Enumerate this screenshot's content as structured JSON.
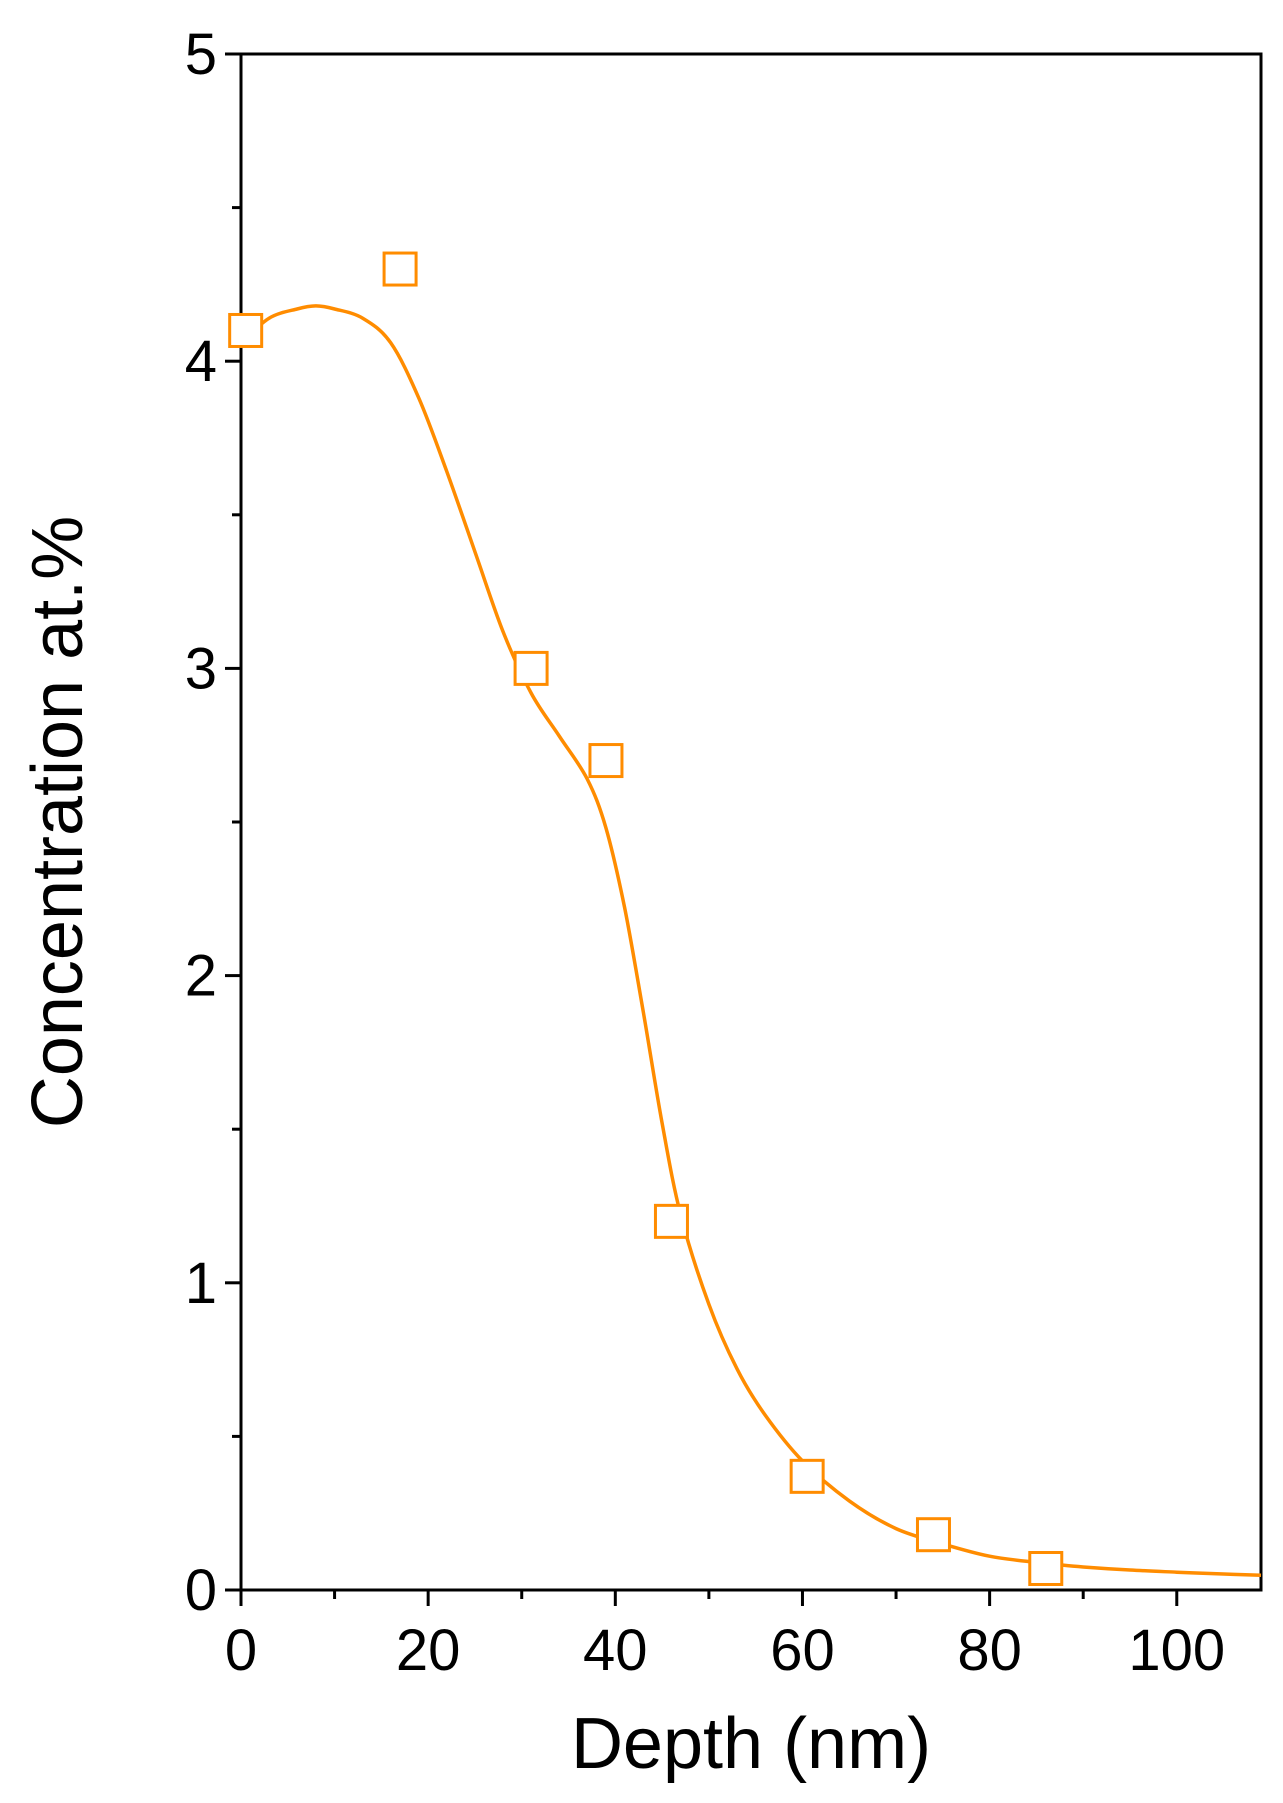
{
  "chart_data": {
    "type": "scatter",
    "xlabel": "Depth (nm)",
    "ylabel": "Concentration at.%",
    "xlim": [
      0,
      109
    ],
    "ylim": [
      0,
      5
    ],
    "x_ticks": [
      0,
      20,
      40,
      60,
      80,
      100
    ],
    "x_tick_labels": [
      "0",
      "20",
      "40",
      "60",
      "80",
      "100"
    ],
    "y_ticks": [
      0,
      1,
      2,
      3,
      4,
      5
    ],
    "y_tick_labels": [
      "0",
      "1",
      "2",
      "3",
      "4",
      "5"
    ],
    "grid": false,
    "colors": {
      "series": "#ff8c00",
      "axis": "#000000"
    },
    "series": [
      {
        "kind": "markers",
        "marker": "open-square",
        "x": [
          0.5,
          17,
          31,
          39,
          46,
          60.5,
          74,
          86
        ],
        "y": [
          4.1,
          4.3,
          3.0,
          2.7,
          1.2,
          0.37,
          0.18,
          0.07
        ]
      },
      {
        "kind": "fit-line",
        "x": [
          0,
          3,
          6,
          8,
          10,
          13,
          16,
          19,
          22,
          25,
          28,
          31,
          34,
          37,
          39,
          41,
          43,
          45,
          47,
          50,
          53,
          56,
          60,
          65,
          70,
          75,
          80,
          85,
          90,
          95,
          100,
          105,
          109
        ],
        "y": [
          4.06,
          4.14,
          4.17,
          4.18,
          4.17,
          4.14,
          4.06,
          3.88,
          3.64,
          3.38,
          3.12,
          2.92,
          2.78,
          2.64,
          2.48,
          2.22,
          1.88,
          1.52,
          1.22,
          0.93,
          0.72,
          0.57,
          0.42,
          0.29,
          0.2,
          0.15,
          0.11,
          0.09,
          0.075,
          0.065,
          0.058,
          0.052,
          0.048
        ]
      }
    ]
  }
}
